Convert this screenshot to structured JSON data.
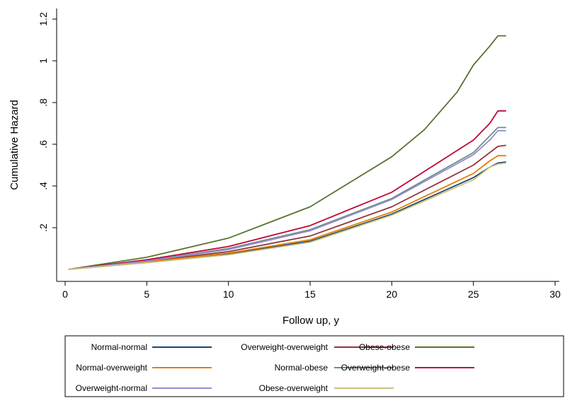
{
  "chart_data": {
    "type": "line",
    "xlabel": "Follow up, y",
    "ylabel": "Cumulative Hazard",
    "xlim": [
      0,
      30
    ],
    "ylim": [
      0,
      1.2
    ],
    "xticks": [
      0,
      5,
      10,
      15,
      20,
      25,
      30
    ],
    "xtick_labels": [
      "0",
      "5",
      "10",
      "15",
      "20",
      "25",
      "30"
    ],
    "yticks": [
      0.2,
      0.4,
      0.6,
      0.8,
      1.0,
      1.2
    ],
    "ytick_labels": [
      ".2",
      ".4",
      ".6",
      ".8",
      "1",
      "1.2"
    ],
    "grid": false,
    "legend_position": "bottom",
    "series": [
      {
        "name": "Normal-normal",
        "color": "#1a476f",
        "x": [
          0.2,
          5,
          10,
          15,
          20,
          25,
          26,
          26.5,
          27
        ],
        "y": [
          0.0,
          0.033,
          0.073,
          0.135,
          0.265,
          0.44,
          0.49,
          0.51,
          0.515
        ]
      },
      {
        "name": "Overweight-overweight",
        "color": "#90353b",
        "x": [
          0.2,
          5,
          10,
          15,
          20,
          25,
          26,
          26.5,
          27
        ],
        "y": [
          0.0,
          0.038,
          0.085,
          0.16,
          0.3,
          0.5,
          0.56,
          0.59,
          0.595
        ]
      },
      {
        "name": "Obese-obese",
        "color": "#55752f",
        "x": [
          0.2,
          5,
          10,
          15,
          20,
          22,
          24,
          25,
          26,
          26.5,
          27
        ],
        "y": [
          0.0,
          0.058,
          0.15,
          0.3,
          0.54,
          0.67,
          0.85,
          0.98,
          1.07,
          1.12,
          1.12
        ]
      },
      {
        "name": "Normal-overweight",
        "color": "#e37e00",
        "x": [
          0.2,
          5,
          10,
          15,
          20,
          25,
          26,
          26.5,
          27
        ],
        "y": [
          0.0,
          0.035,
          0.078,
          0.142,
          0.275,
          0.46,
          0.52,
          0.545,
          0.545
        ]
      },
      {
        "name": "Normal-obese",
        "color": "#6e8e84",
        "x": [
          0.2,
          5,
          10,
          15,
          20,
          25,
          26,
          26.5,
          27
        ],
        "y": [
          0.0,
          0.042,
          0.1,
          0.19,
          0.34,
          0.56,
          0.64,
          0.68,
          0.68
        ]
      },
      {
        "name": "Overweight-obese",
        "color": "#c10534",
        "x": [
          0.2,
          5,
          10,
          15,
          20,
          25,
          26,
          26.5,
          27
        ],
        "y": [
          0.0,
          0.046,
          0.11,
          0.21,
          0.37,
          0.62,
          0.7,
          0.76,
          0.76
        ]
      },
      {
        "name": "Overweight-normal",
        "color": "#938dd2",
        "x": [
          0.2,
          5,
          10,
          15,
          20,
          25,
          26,
          26.5,
          27
        ],
        "y": [
          0.0,
          0.04,
          0.095,
          0.185,
          0.335,
          0.55,
          0.62,
          0.665,
          0.665
        ]
      },
      {
        "name": "Obese-overweight",
        "color": "#cac27e",
        "x": [
          0.2,
          5,
          10,
          15,
          20,
          25,
          26,
          26.5,
          27
        ],
        "y": [
          0.0,
          0.032,
          0.07,
          0.13,
          0.26,
          0.43,
          0.49,
          0.505,
          0.51
        ]
      }
    ]
  }
}
